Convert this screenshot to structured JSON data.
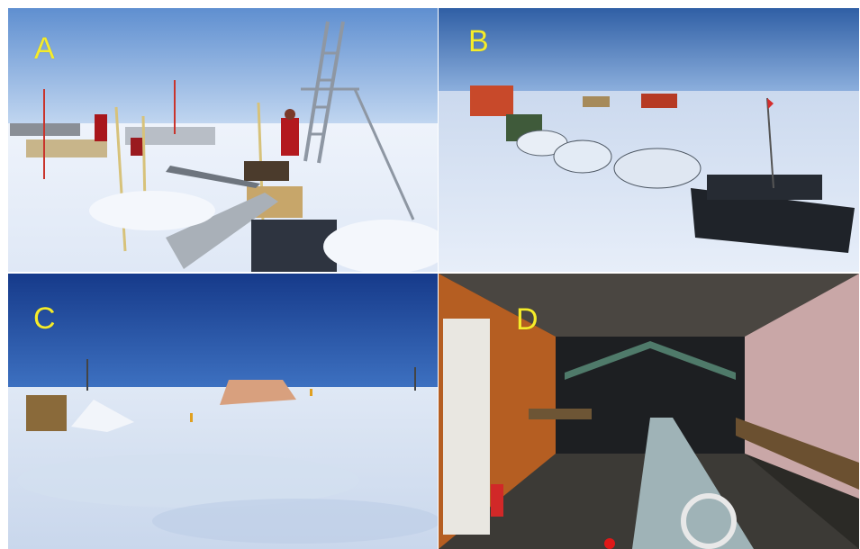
{
  "panels": [
    {
      "label": "A"
    },
    {
      "label": "B"
    },
    {
      "label": "C"
    },
    {
      "label": "D"
    }
  ],
  "colors": {
    "label_text": "#f5ec2a",
    "background": "#ffffff"
  }
}
